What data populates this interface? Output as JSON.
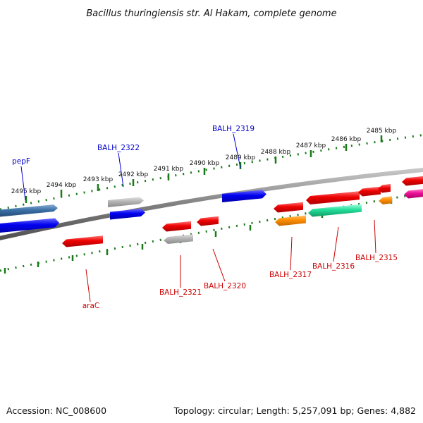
{
  "title": "Bacillus thuringiensis str. Al Hakam, complete genome",
  "accession": "Accession: NC_008600",
  "topology": "Topology: circular; Length: 5,257,091 bp; Genes: 4,882",
  "ticks": [
    {
      "label": "2495 kbp"
    },
    {
      "label": "2494 kbp"
    },
    {
      "label": "2493 kbp"
    },
    {
      "label": "2492 kbp"
    },
    {
      "label": "2491 kbp"
    },
    {
      "label": "2490 kbp"
    },
    {
      "label": "2489 kbp"
    },
    {
      "label": "2488 kbp"
    },
    {
      "label": "2487 kbp"
    },
    {
      "label": "2486 kbp"
    },
    {
      "label": "2485 kbp"
    }
  ],
  "gene_labels": [
    {
      "name": "pepF",
      "strand": "forward",
      "color": "#0000cc"
    },
    {
      "name": "BALH_2322",
      "strand": "forward",
      "color": "#0000cc"
    },
    {
      "name": "BALH_2319",
      "strand": "forward",
      "color": "#0000cc"
    },
    {
      "name": "araC",
      "strand": "reverse",
      "color": "#cc0000"
    },
    {
      "name": "BALH_2321",
      "strand": "reverse",
      "color": "#cc0000"
    },
    {
      "name": "BALH_2320",
      "strand": "reverse",
      "color": "#cc0000"
    },
    {
      "name": "BALH_2317",
      "strand": "reverse",
      "color": "#cc0000"
    },
    {
      "name": "BALH_2316",
      "strand": "reverse",
      "color": "#cc0000"
    },
    {
      "name": "BALH_2315",
      "strand": "reverse",
      "color": "#cc0000"
    }
  ],
  "colors": {
    "backbone": "#808080",
    "tick": "#1a7a1a",
    "forward_cds": "#0000ee",
    "reverse_cds": "#ee0000",
    "forward_label": "#0000cc",
    "reverse_label": "#cc0000",
    "gene_other": "#3a6ea5",
    "pseudo": "#aaaaaa",
    "rna": "#ff8c00",
    "misc": "#00cc88",
    "magenta": "#ee1199"
  }
}
